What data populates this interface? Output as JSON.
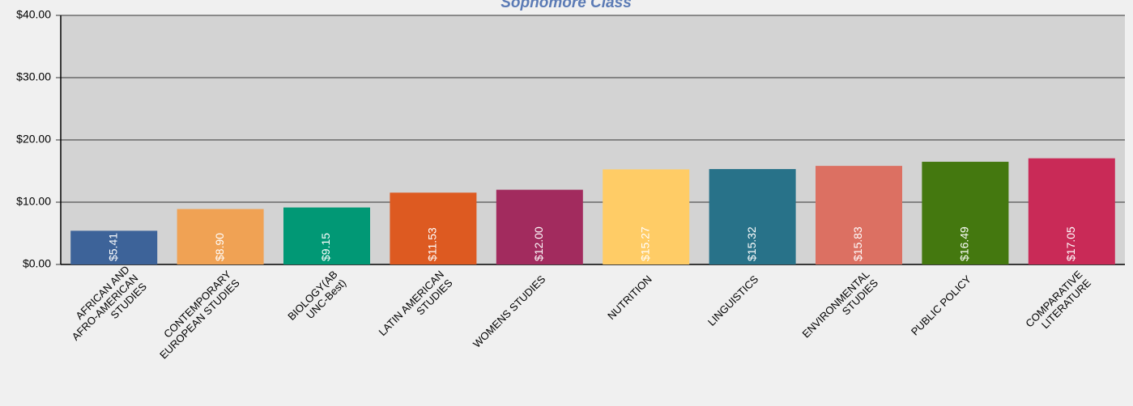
{
  "chart_data": {
    "type": "bar",
    "title": "Sophomore Class",
    "categories": [
      "AFRICAN AND\nAFRO-AMERICAN\nSTUDIES",
      "CONTEMPORARY\nEUROPEAN STUDIES",
      "BIOLOGY(AB\nUNC-Best)",
      "LATIN AMERICAN\nSTUDIES",
      "WOMENS STUDIES",
      "NUTRITION",
      "LINGUISTICS",
      "ENVIRONMENTAL\nSTUDIES",
      "PUBLIC POLICY",
      "COMPARATIVE\nLITERATURE"
    ],
    "values": [
      5.41,
      8.9,
      9.15,
      11.53,
      12.0,
      15.27,
      15.32,
      15.83,
      16.49,
      17.05
    ],
    "value_labels": [
      "$5.41",
      "$8.90",
      "$9.15",
      "$11.53",
      "$12.00",
      "$15.27",
      "$15.32",
      "$15.83",
      "$16.49",
      "$17.05"
    ],
    "colors": [
      "#3d6399",
      "#f0a254",
      "#019875",
      "#dd5a21",
      "#a22b5e",
      "#ffcc66",
      "#287289",
      "#dc7062",
      "#44780f",
      "#c92a57"
    ],
    "ylim": [
      0,
      40
    ],
    "yticks": [
      {
        "value": 0,
        "label": "$0.00"
      },
      {
        "value": 10,
        "label": "$10.00"
      },
      {
        "value": 20,
        "label": "$20.00"
      },
      {
        "value": 30,
        "label": "$30.00"
      },
      {
        "value": 40,
        "label": "$40.00"
      }
    ],
    "grid": true
  }
}
